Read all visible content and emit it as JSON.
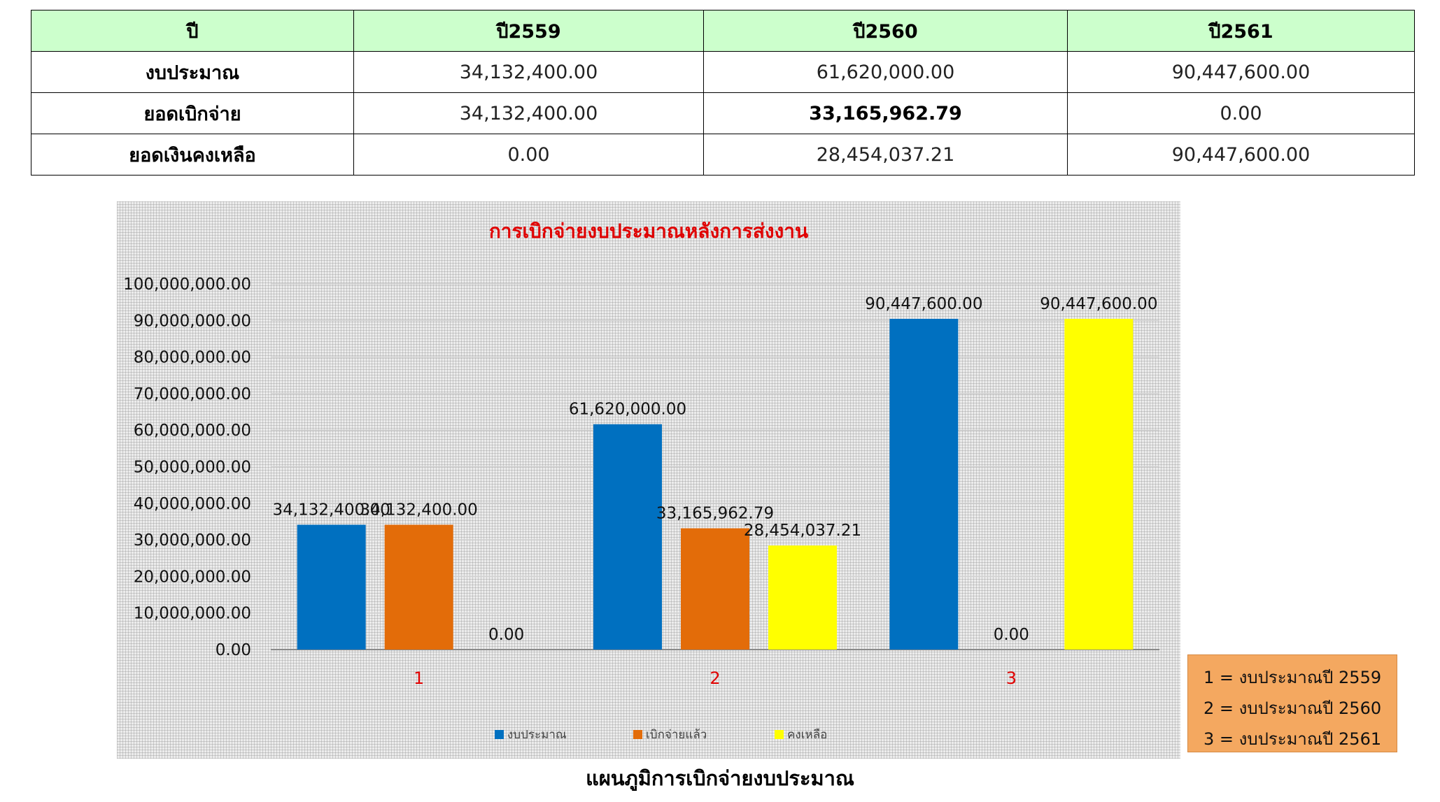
{
  "table": {
    "headers": [
      "ปี",
      "ปี2559",
      "ปี2560",
      "ปี2561"
    ],
    "rows": [
      {
        "label": "งบประมาณ",
        "values": [
          "34,132,400.00",
          "61,620,000.00",
          "90,447,600.00"
        ]
      },
      {
        "label": "ยอดเบิกจ่าย",
        "values": [
          "34,132,400.00",
          "33,165,962.79",
          "0.00"
        ]
      },
      {
        "label": "ยอดเงินคงเหลือ",
        "values": [
          "0.00",
          "28,454,037.21",
          "90,447,600.00"
        ]
      }
    ]
  },
  "chart_data": {
    "type": "bar",
    "title": "การเบิกจ่ายงบประมาณหลังการส่งงาน",
    "categories": [
      "1",
      "2",
      "3"
    ],
    "series": [
      {
        "name": "งบประมาณ",
        "color": "#0070c0",
        "values": [
          34132400.0,
          61620000.0,
          90447600.0
        ],
        "labels": [
          "34,132,400.00",
          "61,620,000.00",
          "90,447,600.00"
        ]
      },
      {
        "name": "เบิกจ่ายแล้ว",
        "color": "#e36c09",
        "values": [
          34132400.0,
          33165962.79,
          0.0
        ],
        "labels": [
          "34,132,400.00",
          "33,165,962.79",
          "0.00"
        ]
      },
      {
        "name": "คงเหลือ",
        "color": "#ffff00",
        "values": [
          0.0,
          28454037.21,
          90447600.0
        ],
        "labels": [
          "0.00",
          "28,454,037.21",
          "90,447,600.00"
        ]
      }
    ],
    "ylim": [
      0,
      100000000
    ],
    "yticks": [
      "0.00",
      "10,000,000.00",
      "20,000,000.00",
      "30,000,000.00",
      "40,000,000.00",
      "50,000,000.00",
      "60,000,000.00",
      "70,000,000.00",
      "80,000,000.00",
      "90,000,000.00",
      "100,000,000.00"
    ],
    "grid": true,
    "legend_position": "bottom",
    "colors": {
      "title": "#e00000",
      "category_labels": "#e00000"
    }
  },
  "key": [
    "1 = งบประมาณปี 2559",
    "2 = งบประมาณปี 2560",
    "3 = งบประมาณปี 2561"
  ],
  "caption": "แผนภูมิการเบิกจ่ายงบประมาณ"
}
